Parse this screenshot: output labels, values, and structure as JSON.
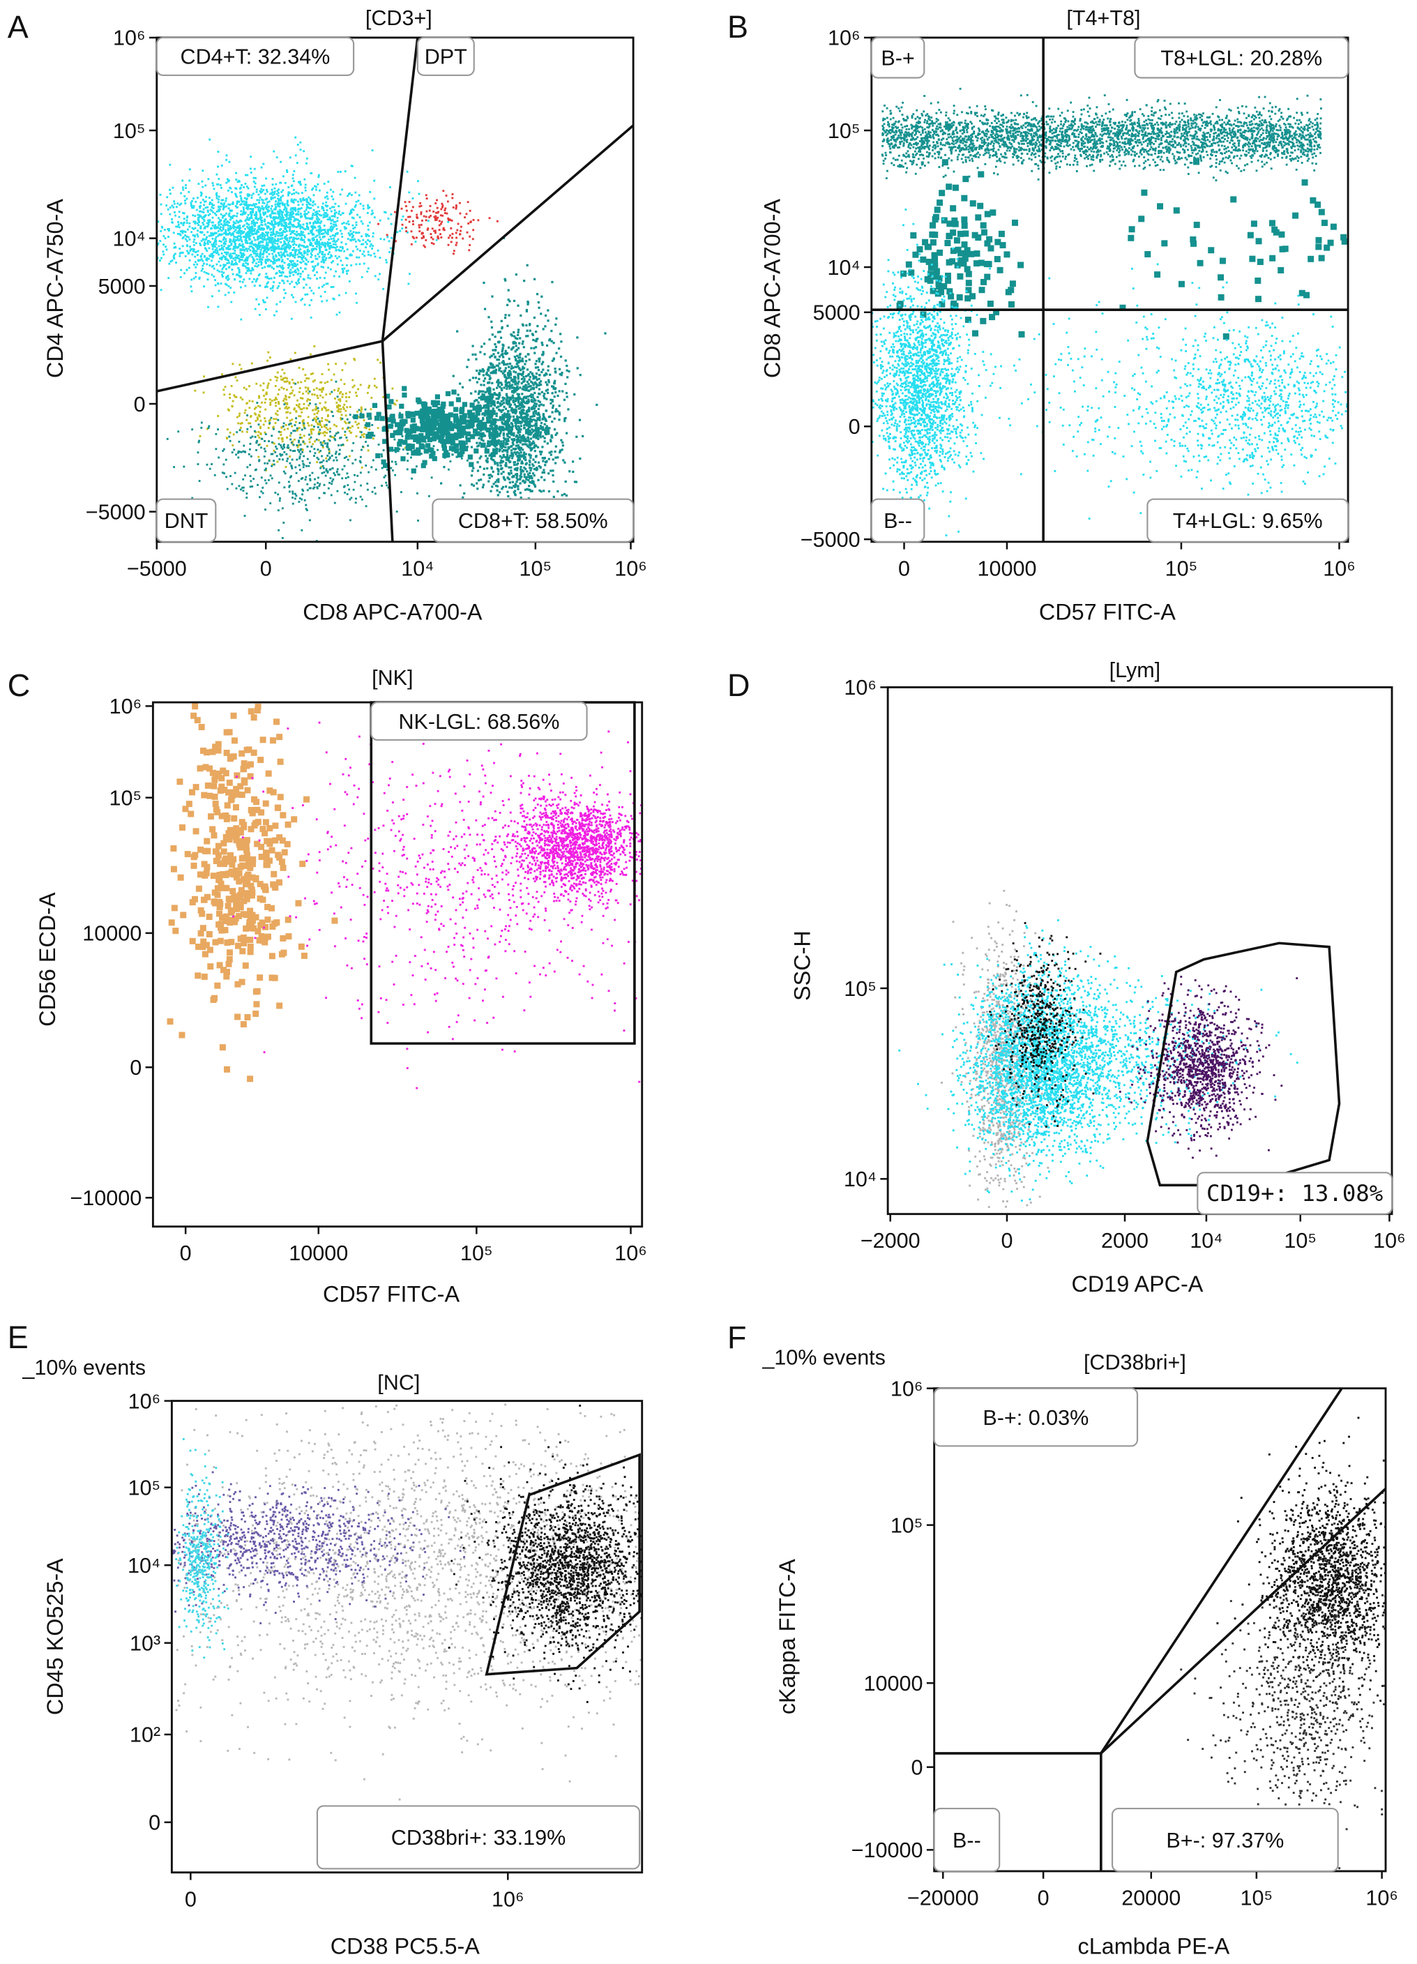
{
  "chart_data": [
    {
      "panel": "A",
      "type": "scatter",
      "title": "[CD3+]",
      "note": "",
      "xlabel": "CD8 APC-A700-A",
      "ylabel": "CD4 APC-A750-A",
      "xticks": [
        {
          "label": "−5000",
          "value": -5000
        },
        {
          "label": "0",
          "value": 0
        },
        {
          "label": "10⁴",
          "value": 10000
        },
        {
          "label": "10⁵",
          "value": 100000
        },
        {
          "label": "10⁶",
          "value": 1000000
        }
      ],
      "yticks": [
        {
          "label": "−5000",
          "value": -5000
        },
        {
          "label": "0",
          "value": 0
        },
        {
          "label": "5000",
          "value": 5000
        },
        {
          "label": "10⁴",
          "value": 10000
        },
        {
          "label": "10⁵",
          "value": 100000
        },
        {
          "label": "10⁶",
          "value": 1000000
        }
      ],
      "gates": [
        {
          "label": "CD4+T: 32.34%",
          "percent": 32.34
        },
        {
          "label": "DPT"
        },
        {
          "label": "DNT"
        },
        {
          "label": "CD8+T: 58.50%",
          "percent": 58.5
        }
      ],
      "populations": [
        {
          "color": "#26def0",
          "x": 0,
          "y": 11000,
          "n": 2600
        },
        {
          "color": "#e23a3a",
          "x": 15000,
          "y": 14000,
          "n": 160
        },
        {
          "color": "#c4bd1e",
          "x": 800,
          "y": -100,
          "n": 500
        },
        {
          "color": "#14918f",
          "x": 1000,
          "y": -1500,
          "n": 500
        },
        {
          "color": "#14918f",
          "x": 15000,
          "y": -500,
          "n": 350
        },
        {
          "color": "#14918f",
          "x": 70000,
          "y": -300,
          "n": 1600
        }
      ]
    },
    {
      "panel": "B",
      "type": "scatter",
      "title": "[T4+T8]",
      "note": "",
      "xlabel": "CD57 FITC-A",
      "ylabel": "CD8 APC-A700-A",
      "xticks": [
        {
          "label": "0",
          "value": 0
        },
        {
          "label": "10000",
          "value": 10000
        },
        {
          "label": "10⁵",
          "value": 100000
        },
        {
          "label": "10⁶",
          "value": 1000000
        }
      ],
      "yticks": [
        {
          "label": "−5000",
          "value": -5000
        },
        {
          "label": "0",
          "value": 0
        },
        {
          "label": "5000",
          "value": 5000
        },
        {
          "label": "10⁴",
          "value": 10000
        },
        {
          "label": "10⁵",
          "value": 100000
        },
        {
          "label": "10⁶",
          "value": 1000000
        }
      ],
      "gates": [
        {
          "label": "B-+"
        },
        {
          "label": "T8+LGL: 20.28%",
          "percent": 20.28
        },
        {
          "label": "B--"
        },
        {
          "label": "T4+LGL: 9.65%",
          "percent": 9.65
        }
      ],
      "populations": [
        {
          "color": "#14918f",
          "x": 35000,
          "y": 88000,
          "n": 3200
        },
        {
          "color": "#14918f",
          "x": 2400,
          "y": 13000,
          "n": 130
        },
        {
          "color": "#14918f",
          "x": 290000,
          "y": 15000,
          "n": 60
        },
        {
          "color": "#26def0",
          "x": 530,
          "y": 840,
          "n": 1800
        },
        {
          "color": "#26def0",
          "x": 290000,
          "y": 530,
          "n": 900
        },
        {
          "color": "#26def0",
          "x": 35000,
          "y": 600,
          "n": 200
        }
      ]
    },
    {
      "panel": "C",
      "type": "scatter",
      "title": "[NK]",
      "note": "",
      "xlabel": "CD57 FITC-A",
      "ylabel": "CD56 ECD-A",
      "xticks": [
        {
          "label": "0",
          "value": 0
        },
        {
          "label": "10000",
          "value": 10000
        },
        {
          "label": "10⁵",
          "value": 100000
        },
        {
          "label": "10⁶",
          "value": 1000000
        }
      ],
      "yticks": [
        {
          "label": "−10000",
          "value": -10000
        },
        {
          "label": "0",
          "value": 0
        },
        {
          "label": "10000",
          "value": 10000
        },
        {
          "label": "10⁵",
          "value": 100000
        },
        {
          "label": "10⁶",
          "value": 1000000
        }
      ],
      "gates": [
        {
          "label": "NK-LGL: 68.56%",
          "percent": 68.56
        }
      ],
      "populations": [
        {
          "color": "#e8a860",
          "x": 1500,
          "y": 32000,
          "n": 420
        },
        {
          "color": "#f01fe2",
          "x": 450000,
          "y": 44000,
          "n": 1400
        },
        {
          "color": "#f01fe2",
          "x": 100000,
          "y": 26000,
          "n": 700
        }
      ]
    },
    {
      "panel": "D",
      "type": "scatter",
      "title": "[Lym]",
      "note": "",
      "xlabel": "CD19 APC-A",
      "ylabel": "SSC-H",
      "xticks": [
        {
          "label": "−2000",
          "value": -2000
        },
        {
          "label": "0",
          "value": 0
        },
        {
          "label": "2000",
          "value": 2000
        },
        {
          "label": "10⁴",
          "value": 10000
        },
        {
          "label": "10⁵",
          "value": 100000
        },
        {
          "label": "10⁶",
          "value": 1000000
        }
      ],
      "yticks": [
        {
          "label": "10⁴",
          "value": 10000
        },
        {
          "label": "10⁵",
          "value": 100000
        },
        {
          "label": "10⁶",
          "value": 1000000
        }
      ],
      "gates": [
        {
          "label": "CD19+: 13.08%",
          "percent": 13.08
        }
      ],
      "populations": [
        {
          "color": "#b4b4b4",
          "x": -60,
          "y": 39000,
          "n": 900
        },
        {
          "color": "#26def0",
          "x": 420,
          "y": 39000,
          "n": 2600
        },
        {
          "color": "#26def0",
          "x": 1800,
          "y": 45000,
          "n": 700
        },
        {
          "color": "#111111",
          "x": 400,
          "y": 66000,
          "n": 500
        },
        {
          "color": "#4b1262",
          "x": 9500,
          "y": 39000,
          "n": 1100
        }
      ]
    },
    {
      "panel": "E",
      "type": "scatter",
      "title": "[NC]",
      "note": "_10% events",
      "xlabel": "CD38 PC5.5-A",
      "ylabel": "CD45 KO525-A",
      "xticks": [
        {
          "label": "0",
          "value": 0
        },
        {
          "label": "10⁶",
          "value": 1000000
        }
      ],
      "yticks": [
        {
          "label": "0",
          "value": 0
        },
        {
          "label": "10²",
          "value": 100
        },
        {
          "label": "10³",
          "value": 1000
        },
        {
          "label": "10⁴",
          "value": 10000
        },
        {
          "label": "10⁵",
          "value": 100000
        },
        {
          "label": "10⁶",
          "value": 1000000
        }
      ],
      "gates": [
        {
          "label": "CD38bri+: 33.19%",
          "percent": 33.19
        }
      ],
      "populations": [
        {
          "color": "#b8b8b8",
          "x": 190000,
          "y": 10000,
          "n": 2200
        },
        {
          "color": "#6a5aa8",
          "x": 3800,
          "y": 20000,
          "n": 900
        },
        {
          "color": "#3fd6e6",
          "x": 240,
          "y": 13000,
          "n": 400
        },
        {
          "color": "#111111",
          "x": 4500000,
          "y": 9500,
          "n": 1800
        }
      ]
    },
    {
      "panel": "F",
      "type": "scatter",
      "title": "[CD38bri+]",
      "note": "_10% events",
      "xlabel": "cLambda PE-A",
      "ylabel": "cKappa FITC-A",
      "xticks": [
        {
          "label": "−20000",
          "value": -20000
        },
        {
          "label": "0",
          "value": 0
        },
        {
          "label": "20000",
          "value": 20000
        },
        {
          "label": "10⁵",
          "value": 100000
        },
        {
          "label": "10⁶",
          "value": 1000000
        }
      ],
      "yticks": [
        {
          "label": "−10000",
          "value": -10000
        },
        {
          "label": "0",
          "value": 0
        },
        {
          "label": "10000",
          "value": 10000
        },
        {
          "label": "10⁵",
          "value": 100000
        },
        {
          "label": "10⁶",
          "value": 1000000
        }
      ],
      "gates": [
        {
          "label": "B-+: 0.03%",
          "percent": 0.03
        },
        {
          "label": "B--"
        },
        {
          "label": "B+-: 97.37%",
          "percent": 97.37
        }
      ],
      "populations": [
        {
          "color": "#111111",
          "x": 380000,
          "y": 45000,
          "n": 1600
        },
        {
          "color": "#333333",
          "x": 240000,
          "y": 4400,
          "n": 700
        }
      ]
    }
  ]
}
